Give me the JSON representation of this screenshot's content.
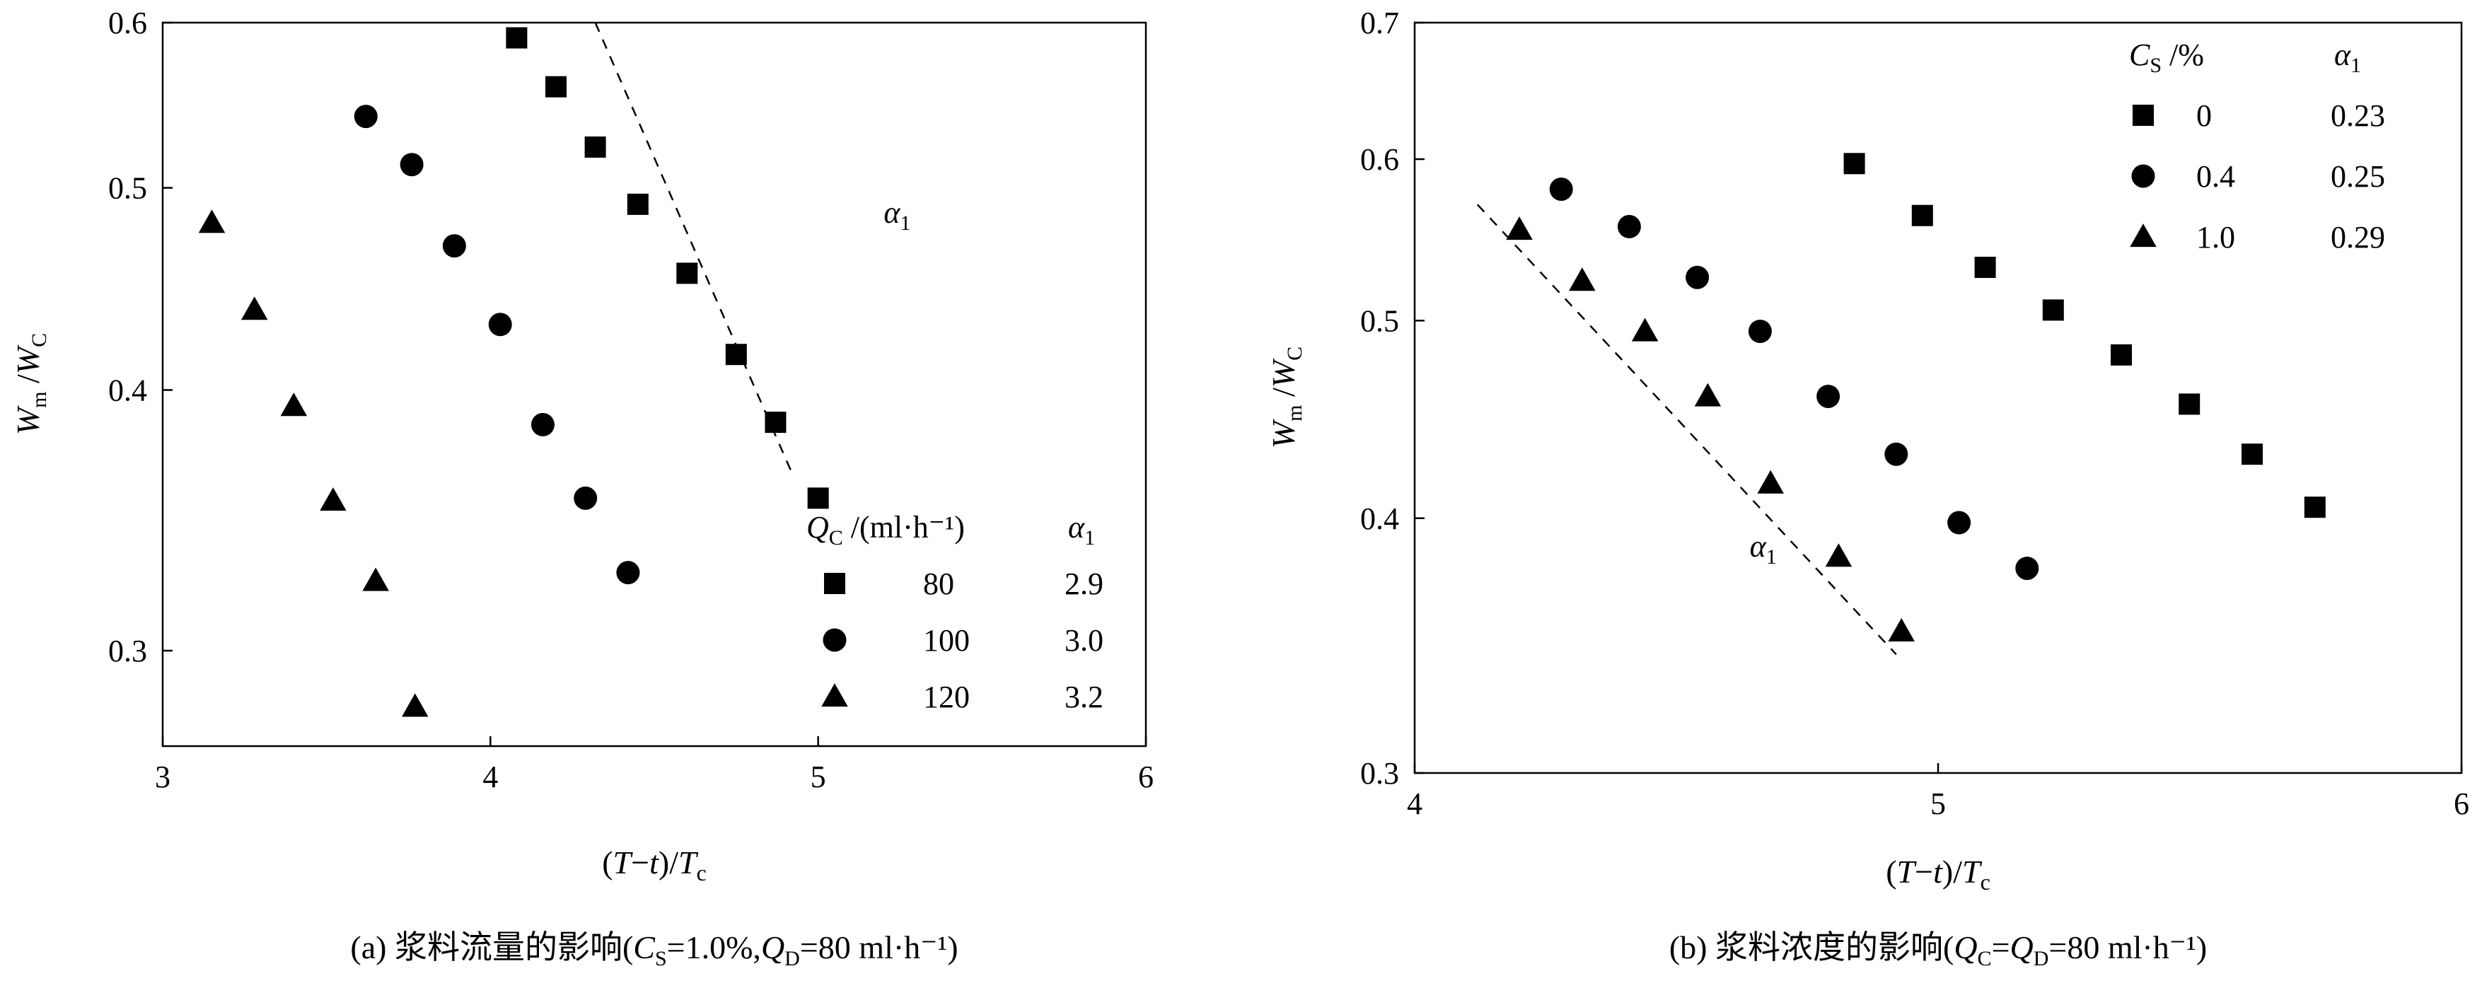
{
  "chart_data": [
    {
      "type": "scatter",
      "panel": "a",
      "caption": {
        "prefix": "(a) 浆料流量的影响(",
        "v1": "C",
        "s1": "S",
        "e1": "=1.0%,",
        "v2": "Q",
        "s2": "D",
        "e2": "=80 ml·h⁻¹)"
      },
      "xlabel": {
        "open": "(",
        "var1": "T",
        "dash": "−",
        "var2": "t",
        "mid": ")/",
        "var3": "T",
        "sub3": "c"
      },
      "ylabel": {
        "v1": "W",
        "s1": "m",
        "sep": " /",
        "v2": "W",
        "s2": "C"
      },
      "xlim": [
        3,
        6
      ],
      "ylim": [
        0.27,
        0.6
      ],
      "yscale": "log",
      "x_ticks": [
        3,
        4,
        5,
        6
      ],
      "x_tick_labels": [
        "3",
        "4",
        "5",
        "6"
      ],
      "y_ticks": [
        0.3,
        0.4,
        0.5,
        0.6
      ],
      "y_tick_labels": [
        "0.3",
        "0.4",
        "0.5",
        "0.6"
      ],
      "legend": {
        "placement": "bottom-right",
        "header_var": "Q",
        "header_sub": "C",
        "header_unit": " /(ml·h⁻¹)",
        "header_alpha": "α",
        "header_alpha_sub": "1",
        "rows": [
          {
            "marker": "square",
            "label": "80",
            "alpha": "2.9"
          },
          {
            "marker": "circle",
            "label": "100",
            "alpha": "3.0"
          },
          {
            "marker": "triangle",
            "label": "120",
            "alpha": "3.2"
          }
        ]
      },
      "series": [
        {
          "name": "80",
          "marker": "square",
          "x": [
            4.08,
            4.2,
            4.32,
            4.45,
            4.6,
            4.75,
            4.87,
            5.0
          ],
          "y": [
            0.59,
            0.559,
            0.523,
            0.491,
            0.455,
            0.416,
            0.386,
            0.355
          ]
        },
        {
          "name": "100",
          "marker": "circle",
          "x": [
            3.62,
            3.76,
            3.89,
            4.03,
            4.16,
            4.29,
            4.42
          ],
          "y": [
            0.541,
            0.513,
            0.469,
            0.43,
            0.385,
            0.355,
            0.327
          ]
        },
        {
          "name": "120",
          "marker": "triangle",
          "x": [
            3.15,
            3.28,
            3.4,
            3.52,
            3.65,
            3.77
          ],
          "y": [
            0.481,
            0.437,
            0.393,
            0.354,
            0.324,
            0.282
          ]
        }
      ],
      "annotation": {
        "text": "α",
        "sub": "1",
        "x": 5.2,
        "y": 0.481
      },
      "slope_line": {
        "x": [
          4.32,
          4.92
        ],
        "y": [
          0.6,
          0.365
        ]
      }
    },
    {
      "type": "scatter",
      "panel": "b",
      "caption": {
        "prefix": "(b) 浆料浓度的影响(",
        "v1": "Q",
        "s1": "C",
        "e1": "=",
        "v2": "Q",
        "s2": "D",
        "e2": "=80 ml·h⁻¹)"
      },
      "xlabel": {
        "open": "(",
        "var1": "T",
        "dash": "−",
        "var2": "t",
        "mid": ")/",
        "var3": "T",
        "sub3": "c"
      },
      "ylabel": {
        "v1": "W",
        "s1": "m",
        "sep": " /",
        "v2": "W",
        "s2": "C"
      },
      "xlim": [
        4,
        6
      ],
      "ylim": [
        0.3,
        0.7
      ],
      "yscale": "log",
      "x_ticks": [
        4,
        5,
        6
      ],
      "x_tick_labels": [
        "4",
        "5",
        "6"
      ],
      "y_ticks": [
        0.3,
        0.4,
        0.5,
        0.6,
        0.7
      ],
      "y_tick_labels": [
        "0.3",
        "0.4",
        "0.5",
        "0.6",
        "0.7"
      ],
      "legend": {
        "placement": "top-right",
        "header_var": "C",
        "header_sub": "S",
        "header_unit": " /%",
        "header_alpha": "α",
        "header_alpha_sub": "1",
        "rows": [
          {
            "marker": "square",
            "label": "0",
            "alpha": "0.23"
          },
          {
            "marker": "circle",
            "label": "0.4",
            "alpha": "0.25"
          },
          {
            "marker": "triangle",
            "label": "1.0",
            "alpha": "0.29"
          }
        ]
      },
      "series": [
        {
          "name": "0",
          "marker": "square",
          "x": [
            4.84,
            4.97,
            5.09,
            5.22,
            5.35,
            5.48,
            5.6,
            5.72
          ],
          "y": [
            0.597,
            0.563,
            0.531,
            0.506,
            0.481,
            0.455,
            0.43,
            0.405
          ]
        },
        {
          "name": "0.4",
          "marker": "circle",
          "x": [
            4.28,
            4.41,
            4.54,
            4.66,
            4.79,
            4.92,
            5.04,
            5.17
          ],
          "y": [
            0.58,
            0.556,
            0.525,
            0.494,
            0.459,
            0.43,
            0.398,
            0.378
          ]
        },
        {
          "name": "1.0",
          "marker": "triangle",
          "x": [
            4.2,
            4.32,
            4.44,
            4.56,
            4.68,
            4.81,
            4.93
          ],
          "y": [
            0.554,
            0.523,
            0.494,
            0.459,
            0.416,
            0.383,
            0.352
          ]
        },
        {
          "name": "1.0",
          "marker": "triangle",
          "show_in_legend": false,
          "x": [],
          "y": []
        }
      ],
      "annotation": {
        "text": "α",
        "sub": "1",
        "x": 4.64,
        "y": 0.383
      },
      "slope_line": {
        "x": [
          4.12,
          4.92
        ],
        "y": [
          0.57,
          0.343
        ]
      }
    }
  ]
}
